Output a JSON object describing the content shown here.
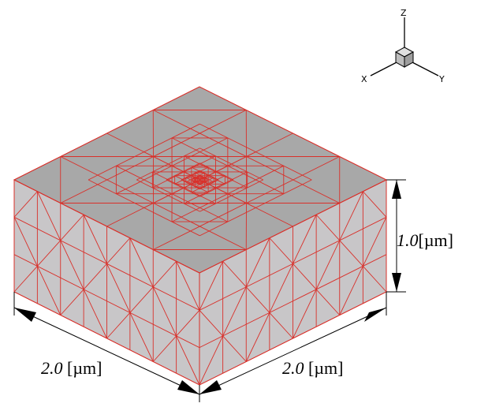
{
  "axes": {
    "z": "Z",
    "x": "X",
    "y": "Y"
  },
  "dimensions": {
    "height": {
      "value": "1.0",
      "unit": "[µm]"
    },
    "width_left": {
      "value": "2.0",
      "unit": "[µm]"
    },
    "width_right": {
      "value": "2.0",
      "unit": "[µm]"
    }
  }
}
